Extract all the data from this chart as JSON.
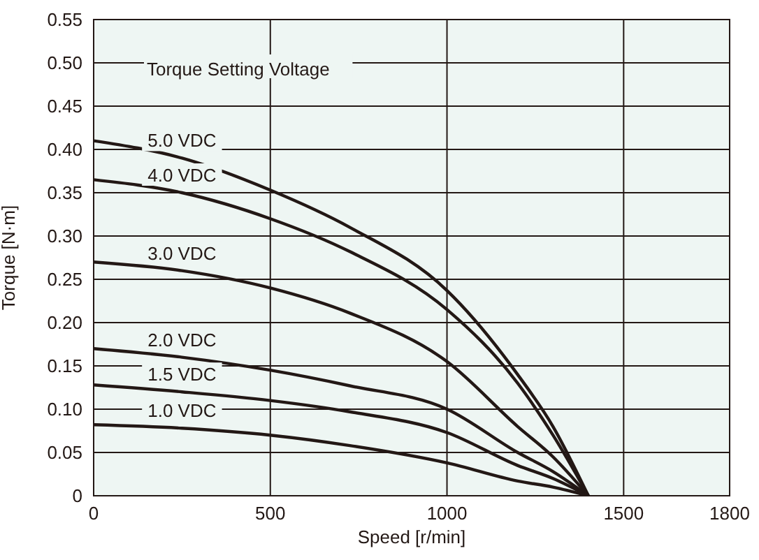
{
  "chart_data": {
    "type": "line",
    "xlabel": "Speed [r/min]",
    "ylabel": "Torque [N·m]",
    "x": [
      0,
      250,
      500,
      725,
      1000,
      1200,
      1300,
      1400
    ],
    "series": [
      {
        "name": "5.0 VDC",
        "color": "#231815",
        "values": [
          0.41,
          0.39,
          0.353,
          0.31,
          0.237,
          0.14,
          0.08,
          0
        ]
      },
      {
        "name": "4.0 VDC",
        "color": "#231815",
        "values": [
          0.365,
          0.35,
          0.32,
          0.282,
          0.215,
          0.13,
          0.07,
          0
        ]
      },
      {
        "name": "3.0 VDC",
        "color": "#231815",
        "values": [
          0.27,
          0.26,
          0.24,
          0.211,
          0.155,
          0.08,
          0.045,
          0
        ]
      },
      {
        "name": "2.0 VDC",
        "color": "#231815",
        "values": [
          0.17,
          0.16,
          0.145,
          0.127,
          0.1,
          0.05,
          0.028,
          0
        ]
      },
      {
        "name": "1.5 VDC",
        "color": "#231815",
        "values": [
          0.128,
          0.12,
          0.11,
          0.097,
          0.073,
          0.035,
          0.02,
          0
        ]
      },
      {
        "name": "1.0 VDC",
        "color": "#231815",
        "values": [
          0.082,
          0.078,
          0.07,
          0.058,
          0.038,
          0.017,
          0.01,
          0
        ]
      }
    ],
    "annotations": [
      "Torque Setting Voltage"
    ],
    "xlim": [
      0,
      1800
    ],
    "xticks": [
      0,
      500,
      1000,
      1500,
      1800
    ],
    "ylim": [
      0,
      0.55
    ],
    "yticks": [
      {
        "value": 0,
        "label": "0"
      },
      {
        "value": 0.05,
        "label": "0.05"
      },
      {
        "value": 0.1,
        "label": "0.10"
      },
      {
        "value": 0.15,
        "label": "0.15"
      },
      {
        "value": 0.2,
        "label": "0.20"
      },
      {
        "value": 0.25,
        "label": "0.25"
      },
      {
        "value": 0.3,
        "label": "0.30"
      },
      {
        "value": 0.35,
        "label": "0.35"
      },
      {
        "value": 0.4,
        "label": "0.40"
      },
      {
        "value": 0.45,
        "label": "0.45"
      },
      {
        "value": 0.5,
        "label": "0.50"
      },
      {
        "value": 0.55,
        "label": "0.55"
      }
    ],
    "grid": true,
    "marker": "none",
    "line_style": "solid"
  }
}
